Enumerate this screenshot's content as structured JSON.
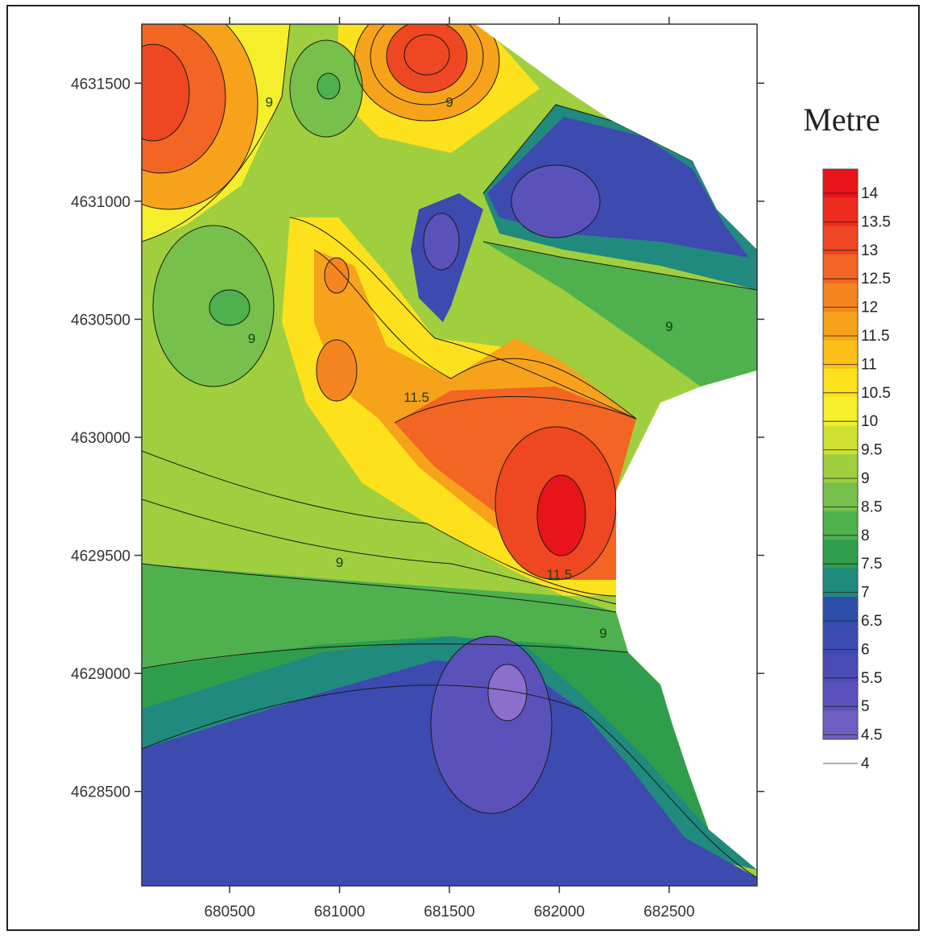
{
  "chart_data": {
    "type": "heatmap",
    "title": "",
    "xlabel": "",
    "ylabel": "",
    "xlim": [
      680100,
      682900
    ],
    "ylim": [
      4628100,
      4631750
    ],
    "x_ticks": [
      "680500",
      "681000",
      "681500",
      "682000",
      "682500"
    ],
    "y_ticks": [
      "4631500",
      "4631000",
      "4630500",
      "4630000",
      "4629500",
      "4629000",
      "4628500"
    ],
    "legend": {
      "title": "Metre",
      "position": "right",
      "levels": [
        "14",
        "13.5",
        "13",
        "12.5",
        "12",
        "11.5",
        "11",
        "10.5",
        "10",
        "9.5",
        "9",
        "8.5",
        "8",
        "7.5",
        "7",
        "6.5",
        "6",
        "5.5",
        "5",
        "4.5",
        "4"
      ],
      "colors": [
        "#e8141b",
        "#ec2c1e",
        "#ef4721",
        "#f26522",
        "#f4851f",
        "#f7a21b",
        "#fbbf17",
        "#fde11c",
        "#f5ee2a",
        "#cfe234",
        "#9fcf3e",
        "#76c04b",
        "#4fb04e",
        "#2e9e4d",
        "#1f8a7d",
        "#2f4eab",
        "#3d4ab0",
        "#4a4bb4",
        "#5a52ba",
        "#6f5ec2",
        "#8a6fcc"
      ]
    },
    "contour_labels": [
      {
        "text": "9",
        "x": 680680,
        "y": 4631400
      },
      {
        "text": "9",
        "x": 681500,
        "y": 4631400
      },
      {
        "text": "9",
        "x": 680600,
        "y": 4630400
      },
      {
        "text": "9",
        "x": 682500,
        "y": 4630450
      },
      {
        "text": "11.5",
        "x": 681350,
        "y": 4630150
      },
      {
        "text": "9",
        "x": 681000,
        "y": 4629450
      },
      {
        "text": "11.5",
        "x": 682000,
        "y": 4629400
      },
      {
        "text": "9",
        "x": 682200,
        "y": 4629150
      }
    ]
  }
}
